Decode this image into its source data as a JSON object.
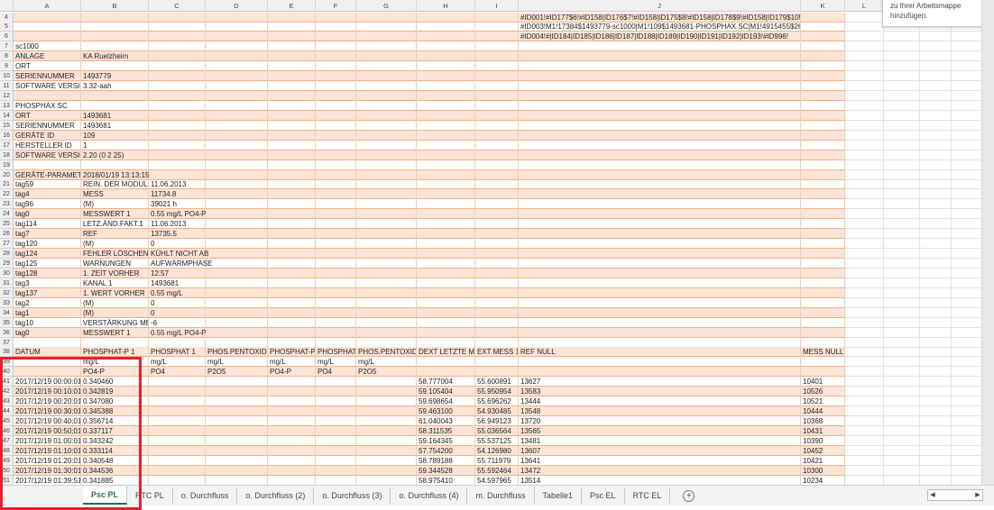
{
  "columns": [
    "A",
    "B",
    "C",
    "D",
    "E",
    "F",
    "G",
    "H",
    "I",
    "J",
    "K",
    "L",
    "M",
    "N",
    "O"
  ],
  "rows": [
    {
      "n": "4",
      "cells": {
        "J": "#ID001!#ID177$6!#ID158|ID176$7!#ID158|ID175$8!#ID158|ID178$9!#ID158|ID179$10!"
      }
    },
    {
      "n": "5",
      "cells": {
        "J": "#ID003!M1!17384$1493779-sc1000|M1!109$1493681-PHOSPHAX SC|M1!4915455$2609-m"
      }
    },
    {
      "n": "6",
      "cells": {
        "J": "#ID004!#|ID184|ID185|ID186|ID187|ID188|ID189|ID190|ID191|ID192|ID193!#ID996!"
      }
    },
    {
      "n": "7",
      "cells": {
        "A": "sc1000"
      }
    },
    {
      "n": "8",
      "cells": {
        "A": "ANLAGE",
        "B": "KA Ruelzheim"
      }
    },
    {
      "n": "9",
      "cells": {
        "A": "ORT"
      }
    },
    {
      "n": "10",
      "cells": {
        "A": "SERIENNUMMER",
        "B": "1493779"
      }
    },
    {
      "n": "11",
      "cells": {
        "A": "SOFTWARE VERSION",
        "B": "3.32-aah"
      }
    },
    {
      "n": "12",
      "cells": {}
    },
    {
      "n": "13",
      "cells": {
        "A": "PHOSPHAX SC"
      }
    },
    {
      "n": "14",
      "cells": {
        "A": "ORT",
        "B": "1493681"
      }
    },
    {
      "n": "15",
      "cells": {
        "A": "SERIENNUMMER",
        "B": "1493681"
      }
    },
    {
      "n": "16",
      "cells": {
        "A": "GERÄTE ID",
        "B": "109"
      }
    },
    {
      "n": "17",
      "cells": {
        "A": "HERSTELLER ID",
        "B": "1"
      }
    },
    {
      "n": "18",
      "cells": {
        "A": "SOFTWARE VERSION",
        "B": "2.20 (0 2 25)"
      }
    },
    {
      "n": "19",
      "cells": {}
    },
    {
      "n": "20",
      "cells": {
        "A": "GERÄTE-PARAMETER",
        "B": "2018/01/19 13:13:15"
      }
    },
    {
      "n": "21",
      "cells": {
        "A": "tag59",
        "B": "REIN. DER MODULE",
        "C": "11.06.2013"
      }
    },
    {
      "n": "22",
      "cells": {
        "A": "tag4",
        "B": "MESS",
        "C": "11734.8"
      }
    },
    {
      "n": "23",
      "cells": {
        "A": "tag96",
        "B": "(M)",
        "C": "39021 h"
      }
    },
    {
      "n": "24",
      "cells": {
        "A": "tag0",
        "B": "MESSWERT 1",
        "C": "0.55 mg/L PO4-P"
      }
    },
    {
      "n": "25",
      "cells": {
        "A": "tag114",
        "B": "LETZ.ÄND.FAKT.1",
        "C": "11.06.2013"
      }
    },
    {
      "n": "26",
      "cells": {
        "A": "tag7",
        "B": "REF",
        "C": "13735.5"
      }
    },
    {
      "n": "27",
      "cells": {
        "A": "tag120",
        "B": "(M)",
        "C": "0"
      }
    },
    {
      "n": "28",
      "cells": {
        "A": "tag124",
        "B": "FEHLER LÖSCHEN",
        "C": "KÜHLT NICHT AB"
      }
    },
    {
      "n": "29",
      "cells": {
        "A": "tag125",
        "B": "WARNUNGEN",
        "C": "AUFWÄRMPHASE"
      }
    },
    {
      "n": "30",
      "cells": {
        "A": "tag128",
        "B": "1. ZEIT VORHER",
        "C": "12:57"
      }
    },
    {
      "n": "31",
      "cells": {
        "A": "tag3",
        "B": "KANAL 1",
        "C": "1493681"
      }
    },
    {
      "n": "32",
      "cells": {
        "A": "tag137",
        "B": "1. WERT VORHER",
        "C": "0.55 mg/L"
      }
    },
    {
      "n": "33",
      "cells": {
        "A": "tag2",
        "B": "(M)",
        "C": "0"
      }
    },
    {
      "n": "34",
      "cells": {
        "A": "tag1",
        "B": "(M)",
        "C": "0"
      }
    },
    {
      "n": "35",
      "cells": {
        "A": "tag10",
        "B": "VERSTÄRKUNG MESS",
        "C": "-6"
      }
    },
    {
      "n": "36",
      "cells": {
        "A": "tag0",
        "B": "MESSWERT 1",
        "C": "0.55 mg/L PO4-P"
      }
    },
    {
      "n": "37",
      "cells": {}
    },
    {
      "n": "38",
      "cells": {
        "A": "DATUM",
        "B": "PHOSPHAT-P 1",
        "C": "PHOSPHAT 1",
        "D": "PHOS.PENTOXIDE1",
        "E": "PHOSPHAT-P 2",
        "F": "PHOSPHAT 2",
        "G": "PHOS.PENTOXIDE2",
        "H": "DEXT LETZTE MESS",
        "I": "EXT MESS 1",
        "J": "REF NULL",
        "K": "MESS NULL"
      }
    },
    {
      "n": "39",
      "cells": {
        "B": "mg/L",
        "C": "mg/L",
        "D": "mg/L",
        "E": "mg/L",
        "F": "mg/L",
        "G": "mg/L"
      }
    },
    {
      "n": "40",
      "cells": {
        "B": "PO4-P",
        "C": "PO4",
        "D": "P2O5",
        "E": "PO4-P",
        "F": "PO4",
        "G": "P2O5"
      }
    },
    {
      "n": "41",
      "cells": {
        "A": "2017/12/19 00:00:01",
        "B": "0.340460",
        "H": "58.777004",
        "I": "55.600891",
        "J": "13627",
        "K": "10401"
      }
    },
    {
      "n": "42",
      "cells": {
        "A": "2017/12/19 00:10:01",
        "B": "0.342819",
        "H": "59.105404",
        "I": "55.950954",
        "J": "13583",
        "K": "10526"
      }
    },
    {
      "n": "43",
      "cells": {
        "A": "2017/12/19 00:20:01",
        "B": "0.347080",
        "H": "59.698654",
        "I": "55.696262",
        "J": "13444",
        "K": "10521"
      }
    },
    {
      "n": "44",
      "cells": {
        "A": "2017/12/19 00:30:01",
        "B": "0.345388",
        "H": "59.463100",
        "I": "54.930485",
        "J": "13548",
        "K": "10444"
      }
    },
    {
      "n": "45",
      "cells": {
        "A": "2017/12/19 00:40:01",
        "B": "0.356714",
        "H": "61.040043",
        "I": "56.949123",
        "J": "13720",
        "K": "10368"
      }
    },
    {
      "n": "46",
      "cells": {
        "A": "2017/12/19 00:50:01",
        "B": "0.337117",
        "H": "58.311535",
        "I": "55.036564",
        "J": "13565",
        "K": "10431"
      }
    },
    {
      "n": "47",
      "cells": {
        "A": "2017/12/19 01:00:01",
        "B": "0.343242",
        "H": "59.164345",
        "I": "55.537125",
        "J": "13481",
        "K": "10390"
      }
    },
    {
      "n": "48",
      "cells": {
        "A": "2017/12/19 01:10:01",
        "B": "0.333114",
        "H": "57.754200",
        "I": "54.126980",
        "J": "13607",
        "K": "10452"
      }
    },
    {
      "n": "49",
      "cells": {
        "A": "2017/12/19 01:20:01",
        "B": "0.340548",
        "H": "58.789188",
        "I": "55.711979",
        "J": "13641",
        "K": "10421"
      }
    },
    {
      "n": "50",
      "cells": {
        "A": "2017/12/19 01:30:01",
        "B": "0.344536",
        "H": "59.344528",
        "I": "55.592464",
        "J": "13472",
        "K": "10300"
      }
    },
    {
      "n": "51",
      "cells": {
        "A": "2017/12/19 01:39:51",
        "B": "0.341885",
        "H": "58.975410",
        "I": "54.597965",
        "J": "13514",
        "K": "10234"
      }
    }
  ],
  "popup": {
    "text": "zu Ihrer Arbeitsmappe hinzufügen."
  },
  "sheet_tabs": [
    {
      "label": "Psc PL",
      "active": true
    },
    {
      "label": "RTC PL",
      "active": false
    },
    {
      "label": "o. Durchfluss",
      "active": false
    },
    {
      "label": "o. Durchfluss (2)",
      "active": false
    },
    {
      "label": "o. Durchfluss (3)",
      "active": false
    },
    {
      "label": "o. Durchfluss (4)",
      "active": false
    },
    {
      "label": "m. Durchfluss",
      "active": false
    },
    {
      "label": "Tabelle1",
      "active": false
    },
    {
      "label": "Psc EL",
      "active": false
    },
    {
      "label": "RTC EL",
      "active": false
    }
  ],
  "add_sheet_icon": "plus-circle-icon",
  "colors": {
    "band": "#fce4d6",
    "band_border": "#f4b183",
    "highlight_box": "#e8202a",
    "active_tab": "#217346"
  }
}
